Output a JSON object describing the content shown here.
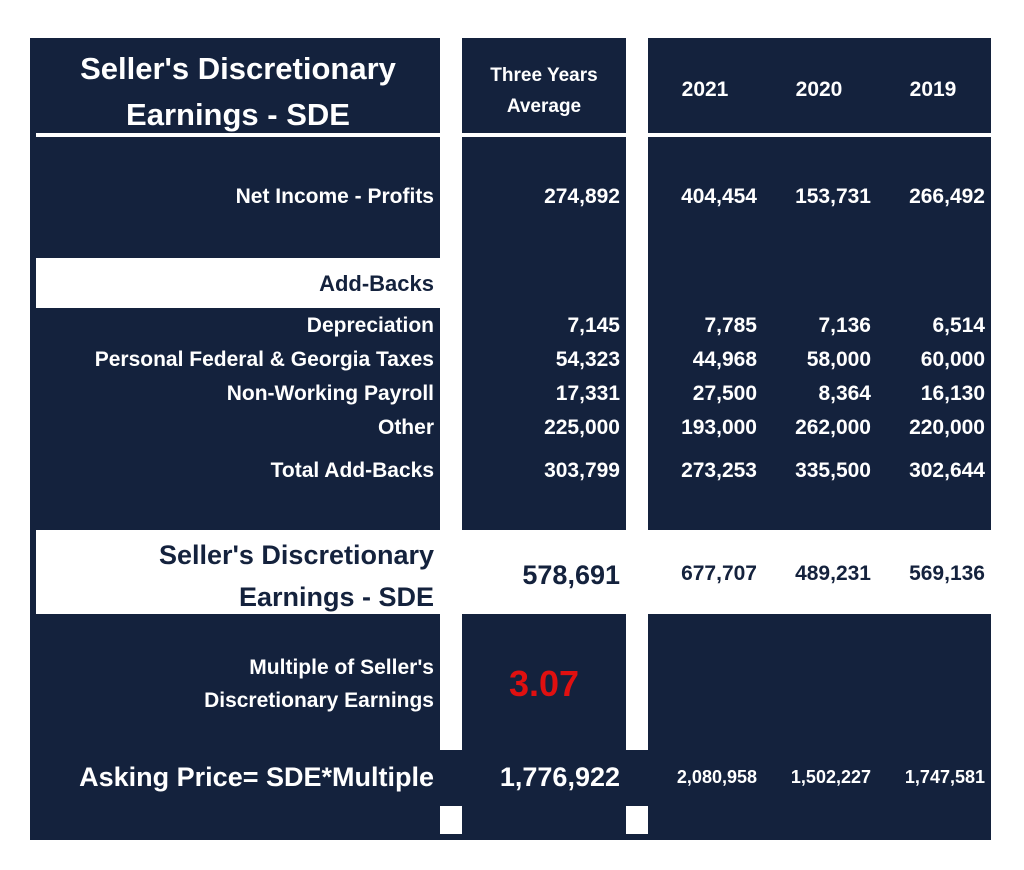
{
  "colors": {
    "navy": "#14223d",
    "white": "#ffffff",
    "accent_red": "#e01010"
  },
  "header": {
    "title_line1": "Seller's Discretionary",
    "title_line2": "Earnings - SDE",
    "avg_line1": "Three Years",
    "avg_line2": "Average",
    "years": [
      "2021",
      "2020",
      "2019"
    ]
  },
  "net_income": {
    "label": "Net Income - Profits",
    "avg": "274,892",
    "values": [
      "404,454",
      "153,731",
      "266,492"
    ]
  },
  "addbacks_heading": "Add-Backs",
  "addbacks": [
    {
      "label": "Depreciation",
      "avg": "7,145",
      "values": [
        "7,785",
        "7,136",
        "6,514"
      ]
    },
    {
      "label": "Personal Federal & Georgia Taxes",
      "avg": "54,323",
      "values": [
        "44,968",
        "58,000",
        "60,000"
      ]
    },
    {
      "label": "Non-Working Payroll",
      "avg": "17,331",
      "values": [
        "27,500",
        "8,364",
        "16,130"
      ]
    },
    {
      "label": "Other",
      "avg": "225,000",
      "values": [
        "193,000",
        "262,000",
        "220,000"
      ]
    },
    {
      "label": "Total Add-Backs",
      "avg": "303,799",
      "values": [
        "273,253",
        "335,500",
        "302,644"
      ]
    }
  ],
  "sde": {
    "label_line1": "Seller's Discretionary",
    "label_line2": "Earnings - SDE",
    "avg": "578,691",
    "values": [
      "677,707",
      "489,231",
      "569,136"
    ]
  },
  "multiple": {
    "label_line1": "Multiple of Seller's",
    "label_line2": "Discretionary Earnings",
    "value": "3.07"
  },
  "asking": {
    "label": "Asking Price= SDE*Multiple",
    "avg": "1,776,922",
    "values": [
      "2,080,958",
      "1,502,227",
      "1,747,581"
    ]
  }
}
